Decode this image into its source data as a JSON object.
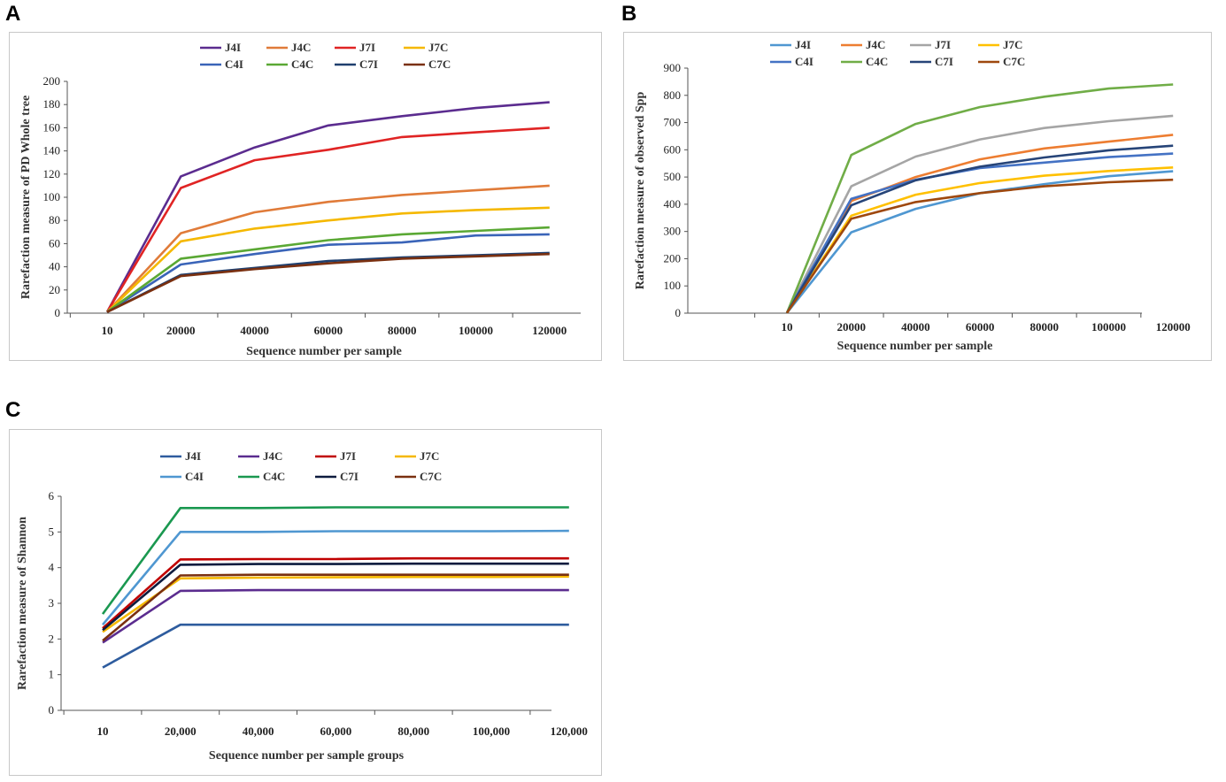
{
  "chart_data": [
    {
      "panel": "A",
      "type": "line",
      "title": "",
      "xlabel": "Sequence number per sample",
      "ylabel": "Rarefaction measure of PD Whole tree",
      "categories": [
        "10",
        "20000",
        "40000",
        "60000",
        "80000",
        "100000",
        "120000"
      ],
      "ylim": [
        0,
        200
      ],
      "yticks": [
        0,
        20,
        40,
        60,
        80,
        100,
        120,
        140,
        160,
        180,
        200
      ],
      "grid": false,
      "legend": "top",
      "series": [
        {
          "name": "J4I",
          "color": "#5b2c8f",
          "values": [
            1,
            118,
            143,
            162,
            170,
            177,
            182
          ]
        },
        {
          "name": "J4C",
          "color": "#e07b39",
          "values": [
            1,
            69,
            87,
            96,
            102,
            106,
            110
          ]
        },
        {
          "name": "J7I",
          "color": "#e02424",
          "values": [
            1,
            108,
            132,
            141,
            152,
            156,
            160
          ]
        },
        {
          "name": "J7C",
          "color": "#f5b800",
          "values": [
            1,
            62,
            73,
            80,
            86,
            89,
            91
          ]
        },
        {
          "name": "C4I",
          "color": "#3a64b8",
          "values": [
            1,
            42,
            51,
            59,
            61,
            67,
            68
          ]
        },
        {
          "name": "C4C",
          "color": "#5aa834",
          "values": [
            1,
            47,
            55,
            63,
            68,
            71,
            74
          ]
        },
        {
          "name": "C7I",
          "color": "#1f3f6e",
          "values": [
            1,
            33,
            39,
            45,
            48,
            50,
            52
          ]
        },
        {
          "name": "C7C",
          "color": "#7a3010",
          "values": [
            1,
            32,
            38,
            43,
            47,
            49,
            51
          ]
        }
      ]
    },
    {
      "panel": "B",
      "type": "line",
      "title": "",
      "xlabel": "Sequence number per sample",
      "ylabel": "Rarefaction measure of observed Spp",
      "categories": [
        "10",
        "20000",
        "40000",
        "60000",
        "80000",
        "100000",
        "120000"
      ],
      "ylim": [
        0,
        900
      ],
      "yticks": [
        0,
        100,
        200,
        300,
        400,
        500,
        600,
        700,
        800,
        900
      ],
      "grid": false,
      "legend": "top",
      "series": [
        {
          "name": "J4I",
          "color": "#4f97d1",
          "values": [
            1,
            297,
            383,
            441,
            474,
            503,
            521
          ]
        },
        {
          "name": "J4C",
          "color": "#ed7d31",
          "values": [
            1,
            412,
            500,
            565,
            605,
            630,
            655
          ]
        },
        {
          "name": "J7I",
          "color": "#a5a5a5",
          "values": [
            1,
            466,
            575,
            638,
            680,
            705,
            725
          ]
        },
        {
          "name": "J7C",
          "color": "#ffc000",
          "values": [
            1,
            358,
            435,
            478,
            505,
            522,
            535
          ]
        },
        {
          "name": "C4I",
          "color": "#4472c4",
          "values": [
            1,
            420,
            490,
            533,
            553,
            573,
            586
          ]
        },
        {
          "name": "C4C",
          "color": "#70ad47",
          "values": [
            1,
            581,
            695,
            757,
            795,
            825,
            840
          ]
        },
        {
          "name": "C7I",
          "color": "#264478",
          "values": [
            1,
            396,
            488,
            538,
            572,
            598,
            615
          ]
        },
        {
          "name": "C7C",
          "color": "#9e480e",
          "values": [
            1,
            347,
            408,
            441,
            466,
            481,
            490
          ]
        }
      ]
    },
    {
      "panel": "C",
      "type": "line",
      "title": "",
      "xlabel": "Sequence number per sample groups",
      "ylabel": "Rarefaction measure of Shannon",
      "categories": [
        "10",
        "20,000",
        "40,000",
        "60,000",
        "80,000",
        "100,000",
        "120,000"
      ],
      "ylim": [
        0,
        6
      ],
      "yticks": [
        0,
        1,
        2,
        3,
        4,
        5,
        6
      ],
      "grid": false,
      "legend": "top",
      "series": [
        {
          "name": "J4I",
          "color": "#2e5c9e",
          "values": [
            1.2,
            2.4,
            2.4,
            2.4,
            2.4,
            2.4,
            2.4
          ]
        },
        {
          "name": "J4C",
          "color": "#5b2c8f",
          "values": [
            1.9,
            3.35,
            3.37,
            3.37,
            3.37,
            3.37,
            3.37
          ]
        },
        {
          "name": "J7I",
          "color": "#c00000",
          "values": [
            2.3,
            4.23,
            4.24,
            4.24,
            4.26,
            4.26,
            4.26
          ]
        },
        {
          "name": "J7C",
          "color": "#f5b800",
          "values": [
            2.2,
            3.7,
            3.72,
            3.73,
            3.74,
            3.74,
            3.75
          ]
        },
        {
          "name": "C4I",
          "color": "#4f97d1",
          "values": [
            2.4,
            5.0,
            5.0,
            5.02,
            5.02,
            5.02,
            5.03
          ]
        },
        {
          "name": "C4C",
          "color": "#1a9850",
          "values": [
            2.7,
            5.67,
            5.67,
            5.69,
            5.69,
            5.69,
            5.69
          ]
        },
        {
          "name": "C7I",
          "color": "#0d1b3e",
          "values": [
            2.25,
            4.08,
            4.1,
            4.1,
            4.11,
            4.11,
            4.11
          ]
        },
        {
          "name": "C7C",
          "color": "#7a3010",
          "values": [
            1.95,
            3.78,
            3.8,
            3.8,
            3.8,
            3.8,
            3.8
          ]
        }
      ]
    }
  ]
}
